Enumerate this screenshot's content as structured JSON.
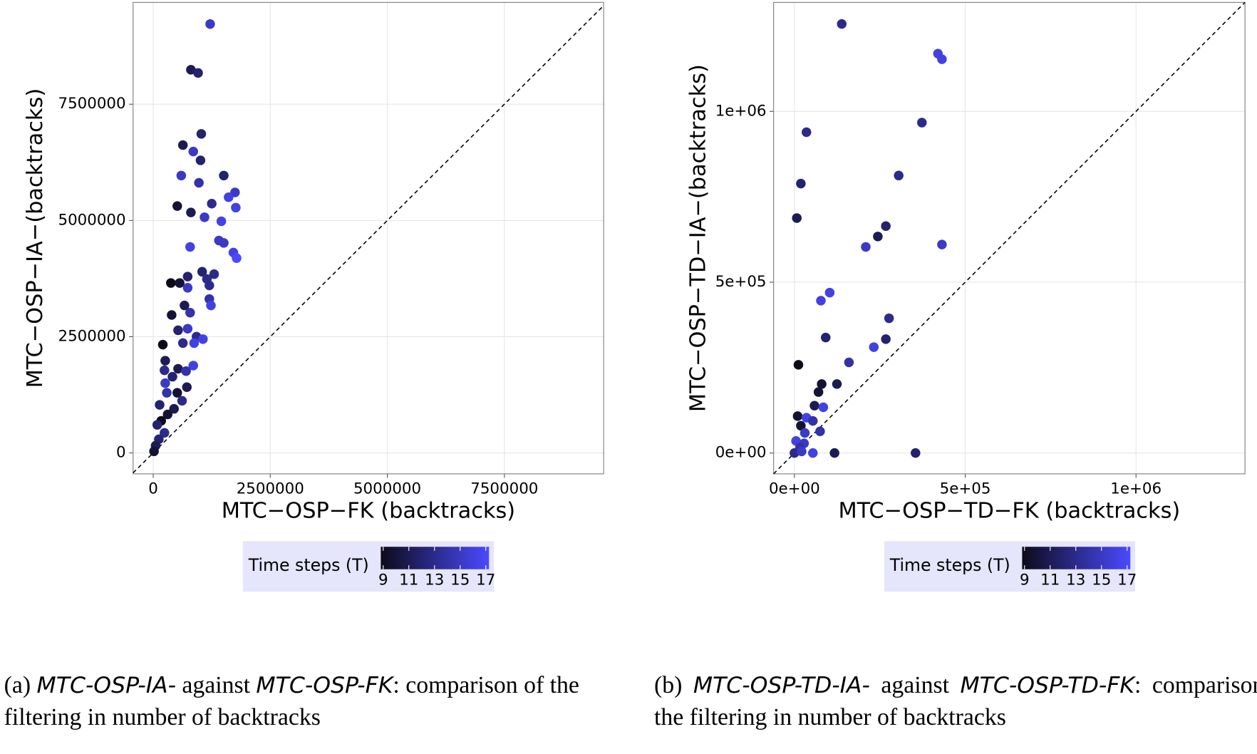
{
  "chart_data": [
    {
      "type": "scatter",
      "x_label": "MTC−OSP−FK (backtracks)",
      "y_label": "MTC−OSP−IA−(backtracks)",
      "xlim": [
        -430000,
        9620000
      ],
      "ylim": [
        -450000,
        9690000
      ],
      "xticks": [
        0,
        2500000,
        5000000,
        7500000
      ],
      "yticks": [
        0,
        2500000,
        5000000,
        7500000
      ],
      "grid": true,
      "diagonal": true,
      "x": [
        1216000,
        805000,
        959000,
        1027000,
        634000,
        856000,
        1010000,
        599000,
        1507000,
        976000,
        1747000,
        1610000,
        1250000,
        1764000,
        514000,
        805000,
        1096000,
        1455000,
        1404000,
        1507000,
        1712000,
        1781000,
        788000,
        1045000,
        1301000,
        1147000,
        736000,
        1199000,
        377000,
        565000,
        736000,
        1199000,
        1233000,
        668000,
        394000,
        788000,
        736000,
        531000,
        925000,
        1062000,
        634000,
        205000,
        873000,
        257000,
        856000,
        531000,
        240000,
        702000,
        411000,
        257000,
        719000,
        514000,
        291000,
        616000,
        137000,
        445000,
        308000,
        171000,
        86000,
        240000,
        120000,
        51000,
        17000
      ],
      "values": [
        9224000,
        8241000,
        8172000,
        6862000,
        6621000,
        6483000,
        6293000,
        5966000,
        5966000,
        5810000,
        5603000,
        5500000,
        5362000,
        5276000,
        5310000,
        5172000,
        5069000,
        4983000,
        4569000,
        4517000,
        4310000,
        4190000,
        4431000,
        3897000,
        3845000,
        3741000,
        3793000,
        3603000,
        3655000,
        3655000,
        3552000,
        3310000,
        3172000,
        3172000,
        2966000,
        3017000,
        2672000,
        2638000,
        2500000,
        2448000,
        2362000,
        2328000,
        2362000,
        1983000,
        1879000,
        1810000,
        1776000,
        1759000,
        1638000,
        1500000,
        1414000,
        1293000,
        1293000,
        1121000,
        1034000,
        948000,
        828000,
        690000,
        603000,
        431000,
        293000,
        155000,
        34000
      ],
      "color_values": [
        15,
        11,
        12,
        12,
        11,
        15,
        12,
        15,
        12,
        14,
        15,
        16,
        13,
        16,
        10,
        11,
        15,
        16,
        15,
        15,
        16,
        17,
        16,
        12,
        13,
        13,
        12,
        13,
        9,
        10,
        15,
        14,
        16,
        11,
        10,
        14,
        15,
        12,
        13,
        16,
        13,
        9,
        16,
        11,
        16,
        11,
        13,
        14,
        12,
        15,
        11,
        10,
        14,
        13,
        12,
        11,
        10,
        9,
        12,
        13,
        12,
        11,
        10
      ],
      "colorbar": {
        "title": "Time steps (T)",
        "lim": [
          9,
          17
        ],
        "ticks": [
          9,
          11,
          13,
          15,
          17
        ],
        "colors": [
          "#0d0b18",
          "#4a4aff"
        ]
      },
      "caption": [
        {
          "text": "(a) "
        },
        {
          "text": "MTC-OSP-IA-",
          "italic": true
        },
        {
          "text": " against "
        },
        {
          "text": "MTC-OSP-FK",
          "italic": true
        },
        {
          "text": ": comparison of the filtering in number of backtracks"
        }
      ]
    },
    {
      "type": "scatter",
      "x_label": "MTC−OSP−TD−FK (backtracks)",
      "y_label": "MTC−OSP−TD−IA−(backtracks)",
      "xlim": [
        -61000,
        1319000
      ],
      "ylim": [
        -61000,
        1319000
      ],
      "xticks": [
        {
          "value": 0,
          "label": "0e+00"
        },
        {
          "value": 500000,
          "label": "5e+05"
        },
        {
          "value": 1000000,
          "label": "1e+06"
        }
      ],
      "yticks": [
        {
          "value": 0,
          "label": "0e+00"
        },
        {
          "value": 500000,
          "label": "5e+05"
        },
        {
          "value": 1000000,
          "label": "1e+06"
        }
      ],
      "grid": true,
      "diagonal": true,
      "x": [
        138500,
        420200,
        431900,
        373200,
        35200,
        305200,
        18800,
        7000,
        267600,
        244100,
        208900,
        431900,
        103300,
        77500,
        277000,
        91500,
        267600,
        232400,
        11700,
        159600,
        79800,
        124400,
        70400,
        58700,
        84500,
        9400,
        35200,
        54000,
        18800,
        75100,
        30500,
        4700,
        28200,
        16400,
        54000,
        117400,
        354500,
        0,
        21100
      ],
      "values": [
        1255900,
        1169000,
        1152600,
        967100,
        939000,
        812200,
        788700,
        687800,
        664300,
        633800,
        603300,
        610300,
        469500,
        446000,
        394400,
        338000,
        333300,
        309900,
        258200,
        265300,
        201900,
        201900,
        178400,
        138500,
        133800,
        108000,
        103300,
        93900,
        79800,
        63400,
        58700,
        35200,
        28200,
        16400,
        0,
        0,
        0,
        0,
        4700
      ],
      "color_values": [
        13,
        16,
        16,
        13,
        13,
        13,
        12,
        11,
        12,
        11,
        15,
        15,
        16,
        16,
        13,
        12,
        12,
        16,
        9,
        14,
        10,
        11,
        10,
        11,
        16,
        10,
        16,
        14,
        10,
        14,
        15,
        16,
        15,
        14,
        16,
        11,
        12,
        13,
        15
      ],
      "colorbar": {
        "title": "Time steps (T)",
        "lim": [
          9,
          17
        ],
        "ticks": [
          9,
          11,
          13,
          15,
          17
        ],
        "colors": [
          "#0d0b18",
          "#4a4aff"
        ]
      },
      "caption": [
        {
          "text": "(b) "
        },
        {
          "text": "MTC-OSP-TD-IA-",
          "italic": true
        },
        {
          "text": " against "
        },
        {
          "text": "MTC-OSP-TD-FK",
          "italic": true
        },
        {
          "text": ": comparison of the filtering in number of backtracks"
        }
      ]
    }
  ]
}
